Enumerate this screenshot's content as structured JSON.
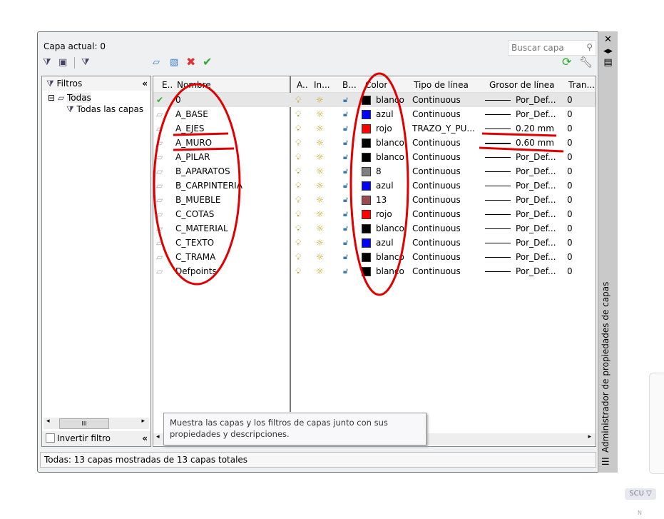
{
  "header": {
    "current_layer": "Capa actual: 0",
    "search_placeholder": "Buscar capa"
  },
  "filters": {
    "title": "Filtros",
    "tree": [
      {
        "label": "Todas"
      },
      {
        "label": "Todas las capas"
      }
    ],
    "invert_label": "Invertir filtro",
    "scroll_thumb": "III"
  },
  "columns": [
    "E..",
    "Nombre",
    "A..",
    "In...",
    "B...",
    "Color",
    "Tipo de línea",
    "Grosor de línea",
    "Tran..."
  ],
  "layers": [
    {
      "name": "0",
      "color": "blanco",
      "hex": "#000000",
      "linetype": "Continuous",
      "weight": "Por_Def...",
      "trans": "0",
      "current": true
    },
    {
      "name": "A_BASE",
      "color": "azul",
      "hex": "#0000ff",
      "linetype": "Continuous",
      "weight": "Por_Def...",
      "trans": "0"
    },
    {
      "name": "A_EJES",
      "color": "rojo",
      "hex": "#ff0000",
      "linetype": "TRAZO_Y_PU...",
      "weight": "0.20 mm",
      "trans": "0"
    },
    {
      "name": "A_MURO",
      "color": "blanco",
      "hex": "#000000",
      "linetype": "Continuous",
      "weight": "0.60 mm",
      "trans": "0"
    },
    {
      "name": "A_PILAR",
      "color": "blanco",
      "hex": "#000000",
      "linetype": "Continuous",
      "weight": "Por_Def...",
      "trans": "0"
    },
    {
      "name": "B_APARATOS",
      "color": "8",
      "hex": "#808080",
      "linetype": "Continuous",
      "weight": "Por_Def...",
      "trans": "0"
    },
    {
      "name": "B_CARPINTERIA",
      "color": "azul",
      "hex": "#0000ff",
      "linetype": "Continuous",
      "weight": "Por_Def...",
      "trans": "0"
    },
    {
      "name": "B_MUEBLE",
      "color": "13",
      "hex": "#9a4c4c",
      "linetype": "Continuous",
      "weight": "Por_Def...",
      "trans": "0"
    },
    {
      "name": "C_COTAS",
      "color": "rojo",
      "hex": "#ff0000",
      "linetype": "Continuous",
      "weight": "Por_Def...",
      "trans": "0"
    },
    {
      "name": "C_MATERIAL",
      "color": "blanco",
      "hex": "#000000",
      "linetype": "Continuous",
      "weight": "Por_Def...",
      "trans": "0"
    },
    {
      "name": "C_TEXTO",
      "color": "azul",
      "hex": "#0000ff",
      "linetype": "Continuous",
      "weight": "Por_Def...",
      "trans": "0"
    },
    {
      "name": "C_TRAMA",
      "color": "blanco",
      "hex": "#000000",
      "linetype": "Continuous",
      "weight": "Por_Def...",
      "trans": "0"
    },
    {
      "name": "Defpoints",
      "color": "blanco",
      "hex": "#000000",
      "linetype": "Continuous",
      "weight": "Por_Def...",
      "trans": "0"
    }
  ],
  "tooltip": "Muestra las capas y los filtros de capas junto con sus propiedades y descripciones.",
  "status": "Todas: 13 capas mostradas de 13 capas totales",
  "side_title": "Administrador de propiedades de capas",
  "viewport": {
    "ucs_label": "SCU ▽",
    "north": "N"
  },
  "annotation_color": "#e00000"
}
